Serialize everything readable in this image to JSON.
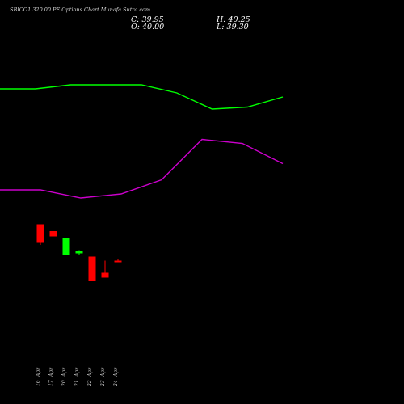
{
  "chart_data": {
    "type": "candlestick",
    "title": "SBICO1 320.00 PE Options Chart Munafa Sutra.com",
    "readout": {
      "close": "C: 39.95",
      "high": "H: 40.25",
      "open": "O: 40.00",
      "low": "L: 39.30"
    },
    "categories": [
      "Apr 16",
      "Apr 17",
      "Apr 20",
      "Apr 21",
      "Apr 22",
      "Apr 23",
      "Apr 24"
    ],
    "tick_labels": [
      [
        "16",
        "Apr"
      ],
      [
        "17",
        "Apr"
      ],
      [
        "20",
        "Apr"
      ],
      [
        "21",
        "Apr"
      ],
      [
        "22",
        "Apr"
      ],
      [
        "23",
        "Apr"
      ],
      [
        "24",
        "Apr"
      ]
    ],
    "candles": [
      {
        "open": 44.5,
        "high": 44.5,
        "low": 39.4,
        "close": 39.9
      },
      {
        "open": 42.8,
        "high": 42.8,
        "low": 41.5,
        "close": 41.5
      },
      {
        "open": 37.0,
        "high": 41.1,
        "low": 37.0,
        "close": 41.1
      },
      {
        "open": 37.3,
        "high": 37.9,
        "low": 36.9,
        "close": 37.8
      },
      {
        "open": 36.5,
        "high": 36.5,
        "low": 30.4,
        "close": 30.4
      },
      {
        "open": 32.5,
        "high": 35.5,
        "low": 31.3,
        "close": 31.3
      },
      {
        "open": 35.5,
        "high": 35.9,
        "low": 35.3,
        "close": 35.4
      }
    ],
    "overlays": [
      {
        "color": "#00ff00",
        "values": [
          78.0,
          78.0,
          79.0,
          79.0,
          79.0,
          77.0,
          73.0,
          73.5,
          76.0
        ]
      },
      {
        "color": "#cc00cc",
        "values": [
          53.0,
          53.0,
          51.0,
          52.0,
          55.5,
          65.5,
          64.5,
          59.5
        ]
      }
    ],
    "ylim": [
      0,
      100
    ],
    "colors": {
      "up": "#00ff00",
      "down": "#ff0000",
      "background": "#000000",
      "tick_text": "#d0d0d0"
    }
  }
}
